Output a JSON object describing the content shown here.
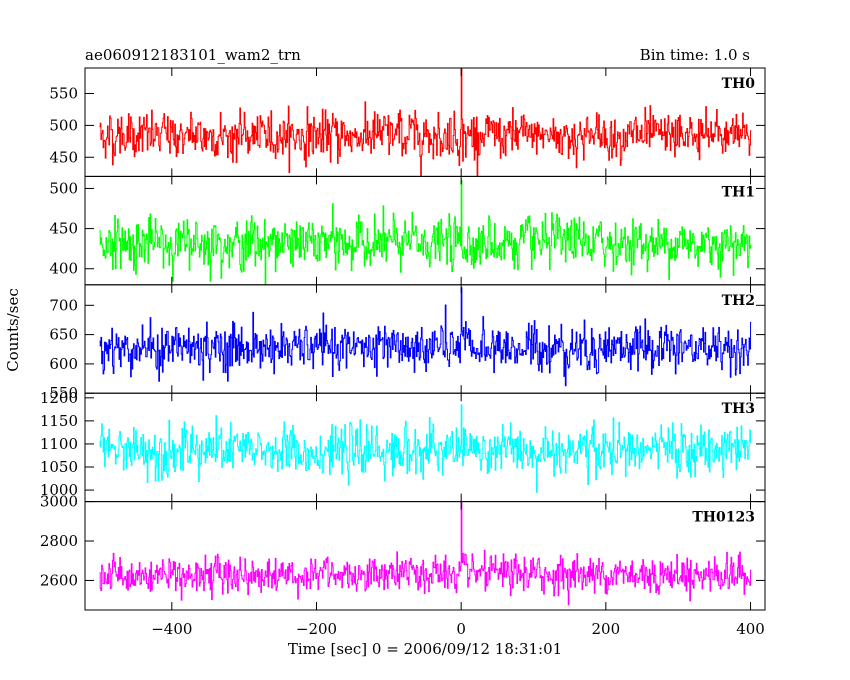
{
  "chart_data": {
    "type": "line",
    "title": "ae060912183101_wam2_trn",
    "bin_time_label": "Bin time: 1.0 s",
    "xlabel": "Time [sec] 0 = 2006/09/12 18:31:01",
    "ylabel": "Counts/sec",
    "xlim": [
      -520,
      420
    ],
    "x_ticks": [
      -400,
      -200,
      0,
      200,
      400
    ],
    "x_tick_labels": [
      "−400",
      "−200",
      "0",
      "200",
      "400"
    ],
    "x_range_data": [
      -500,
      400
    ],
    "x_step": 1,
    "grid": false,
    "legend": "none",
    "panels": [
      {
        "name": "TH0",
        "color": "#ff0000",
        "ylim": [
          420,
          590
        ],
        "y_ticks": [
          450,
          500,
          550
        ],
        "y_tick_labels": [
          "450",
          "500",
          "550"
        ],
        "mean": 484,
        "noise_std": 22,
        "spike": {
          "x": 0,
          "value": 590
        }
      },
      {
        "name": "TH1",
        "color": "#00ff00",
        "ylim": [
          380,
          515
        ],
        "y_ticks": [
          400,
          450,
          500
        ],
        "y_tick_labels": [
          "400",
          "450",
          "500"
        ],
        "mean": 432,
        "noise_std": 19,
        "spike": {
          "x": 0,
          "value": 510
        }
      },
      {
        "name": "TH2",
        "color": "#0000ff",
        "ylim": [
          550,
          735
        ],
        "y_ticks": [
          550,
          600,
          650,
          700
        ],
        "y_tick_labels": [
          "550",
          "600",
          "650",
          "700"
        ],
        "mean": 628,
        "noise_std": 25,
        "spike": {
          "x": 0,
          "value": 730
        }
      },
      {
        "name": "TH3",
        "color": "#00ffff",
        "ylim": [
          975,
          1210
        ],
        "y_ticks": [
          1000,
          1050,
          1100,
          1150,
          1200
        ],
        "y_tick_labels": [
          "1000",
          "1050",
          "1100",
          "1150",
          "1200"
        ],
        "mean": 1085,
        "noise_std": 32,
        "spike": {
          "x": 0,
          "value": 1185
        }
      },
      {
        "name": "TH0123",
        "color": "#ff00ff",
        "ylim": [
          2450,
          3000
        ],
        "y_ticks": [
          2600,
          2800,
          3000
        ],
        "y_tick_labels": [
          "2600",
          "2800",
          "3000"
        ],
        "mean": 2632,
        "noise_std": 55,
        "spike": {
          "x": 0,
          "value": 3000
        }
      }
    ]
  }
}
